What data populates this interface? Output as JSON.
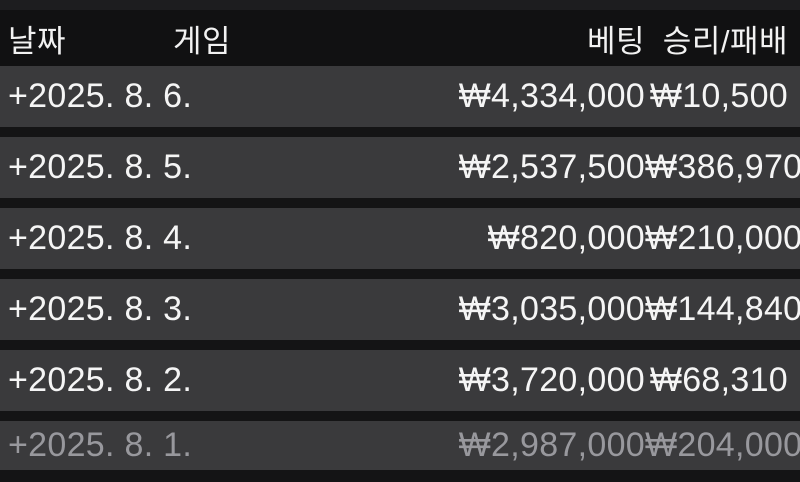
{
  "table": {
    "header": {
      "date_label": "날짜",
      "game_label": "게임",
      "bet_label": "베팅",
      "winloss_label": "승리/패배"
    },
    "rows": [
      {
        "date": "+2025. 8. 6.",
        "game": "",
        "bet": "₩4,334,000",
        "result": "₩10,500",
        "dimmed": false
      },
      {
        "date": "+2025. 8. 5.",
        "game": "",
        "bet": "₩2,537,500",
        "result": "₩386,970",
        "dimmed": false
      },
      {
        "date": "+2025. 8. 4.",
        "game": "",
        "bet": "₩820,000",
        "result": "₩210,000",
        "dimmed": false
      },
      {
        "date": "+2025. 8. 3.",
        "game": "",
        "bet": "₩3,035,000",
        "result": "₩144,840",
        "dimmed": false
      },
      {
        "date": "+2025. 8. 2.",
        "game": "",
        "bet": "₩3,720,000",
        "result": "₩68,310",
        "dimmed": false
      },
      {
        "date": "+2025. 8. 1.",
        "game": "",
        "bet": "₩2,987,000",
        "result": "₩204,000",
        "dimmed": true
      }
    ]
  },
  "colors": {
    "page_background": "#141415",
    "header_background": "#111112",
    "row_background": "#3a3a3c",
    "top_bar": "#1d1d1f",
    "text_primary": "#f5f5f5",
    "text_dimmed": "#98989d"
  },
  "currency_symbol": "₩"
}
